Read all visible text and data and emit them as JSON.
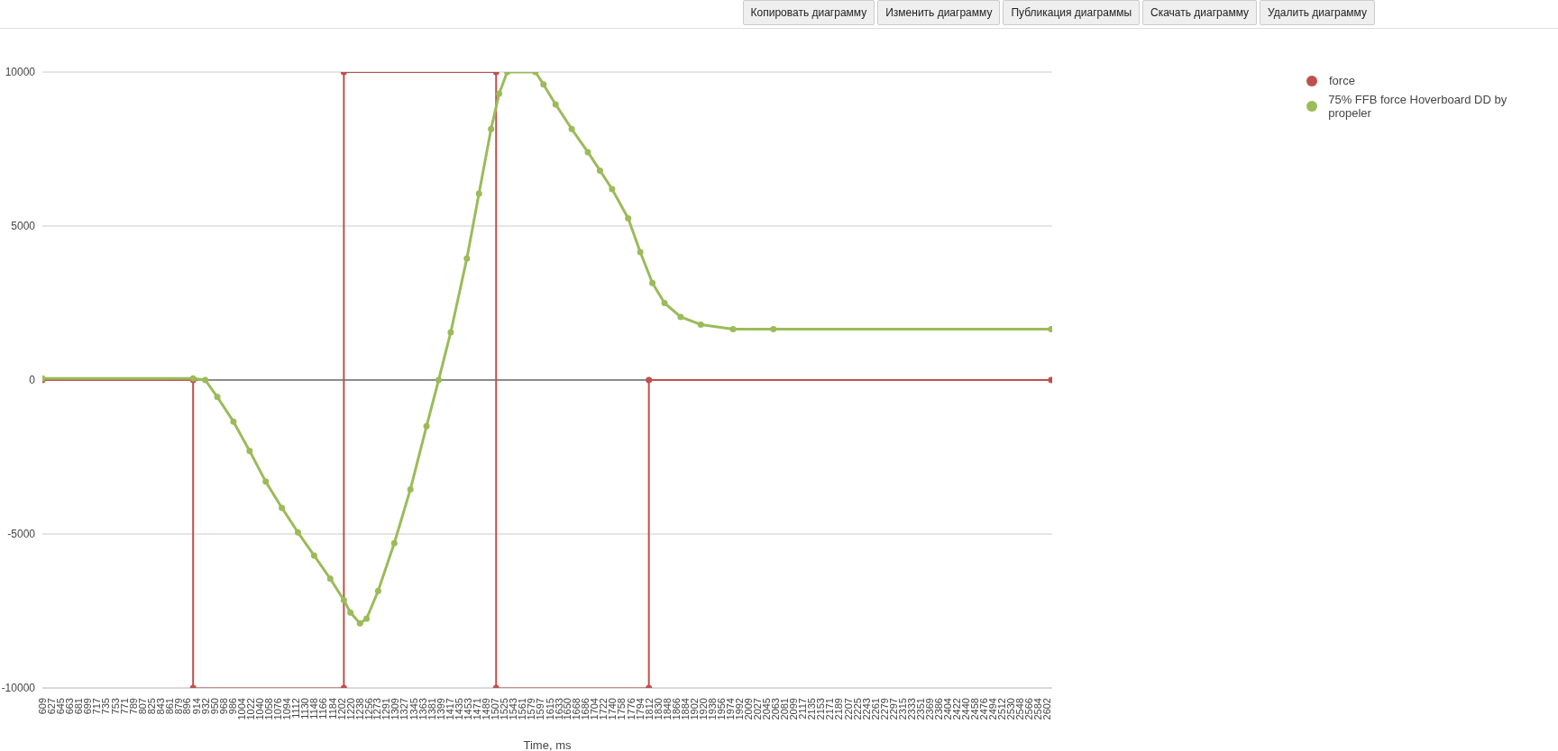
{
  "chart_data": {
    "type": "line",
    "xlabel": "Time, ms",
    "annotations": [
      "Копировать диаграмму",
      "Изменить диаграмму",
      "Публикация диаграммы",
      "Скачать диаграмму",
      "Удалить диаграмму"
    ],
    "series": [
      {
        "name": "force",
        "color": "#c0504d",
        "x": [
          609,
          908,
          908,
          1207,
          1207,
          1509,
          1509,
          1812,
          1812,
          2610
        ],
        "values": [
          0,
          0,
          -10000,
          -10000,
          10000,
          10000,
          -10000,
          -10000,
          0,
          0
        ]
      },
      {
        "name": "75% FFB force Hoverboard DD by propeler",
        "color": "#9bbb59",
        "x": [
          609,
          908,
          932,
          956,
          988,
          1020,
          1052,
          1084,
          1116,
          1148,
          1180,
          1207,
          1220,
          1239,
          1252,
          1275,
          1307,
          1339,
          1371,
          1395,
          1419,
          1451,
          1475,
          1499,
          1515,
          1531,
          1587,
          1603,
          1627,
          1659,
          1691,
          1715,
          1739,
          1771,
          1795,
          1819,
          1843,
          1875,
          1915,
          1979,
          2059,
          2610
        ],
        "values": [
          50,
          50,
          0,
          -550,
          -1350,
          -2300,
          -3300,
          -4150,
          -4950,
          -5700,
          -6450,
          -7150,
          -7550,
          -7900,
          -7750,
          -6850,
          -5300,
          -3550,
          -1500,
          0,
          1550,
          3950,
          6050,
          8150,
          9300,
          10000,
          10000,
          9600,
          8950,
          8150,
          7400,
          6800,
          6200,
          5250,
          4150,
          3150,
          2500,
          2050,
          1800,
          1650,
          1650,
          1650
        ]
      }
    ],
    "xlim": [
      609,
      2612
    ],
    "xticks": [
      609,
      627,
      645,
      663,
      681,
      699,
      717,
      735,
      753,
      771,
      789,
      807,
      825,
      843,
      861,
      879,
      896,
      914,
      932,
      950,
      968,
      986,
      1004,
      1022,
      1040,
      1058,
      1076,
      1094,
      1112,
      1130,
      1148,
      1166,
      1184,
      1202,
      1220,
      1238,
      1256,
      1273,
      1291,
      1309,
      1327,
      1345,
      1363,
      1381,
      1399,
      1417,
      1435,
      1453,
      1471,
      1489,
      1507,
      1525,
      1543,
      1561,
      1579,
      1597,
      1615,
      1633,
      1650,
      1668,
      1686,
      1704,
      1722,
      1740,
      1758,
      1776,
      1794,
      1812,
      1830,
      1848,
      1866,
      1884,
      1902,
      1920,
      1938,
      1956,
      1974,
      1992,
      2009,
      2027,
      2045,
      2063,
      2081,
      2099,
      2117,
      2135,
      2153,
      2171,
      2189,
      2207,
      2225,
      2243,
      2261,
      2279,
      2297,
      2315,
      2333,
      2351,
      2369,
      2386,
      2404,
      2422,
      2440,
      2458,
      2476,
      2494,
      2512,
      2530,
      2548,
      2566,
      2584,
      2602
    ],
    "ylim": [
      -10000,
      10000
    ],
    "yticks": [
      -10000,
      -5000,
      0,
      5000,
      10000
    ],
    "ref_lines": [
      {
        "axis": "y",
        "value": 0,
        "color": "#333333"
      }
    ],
    "grid": "y",
    "legend": "top right",
    "marker": "circle",
    "line_style": "solid"
  }
}
